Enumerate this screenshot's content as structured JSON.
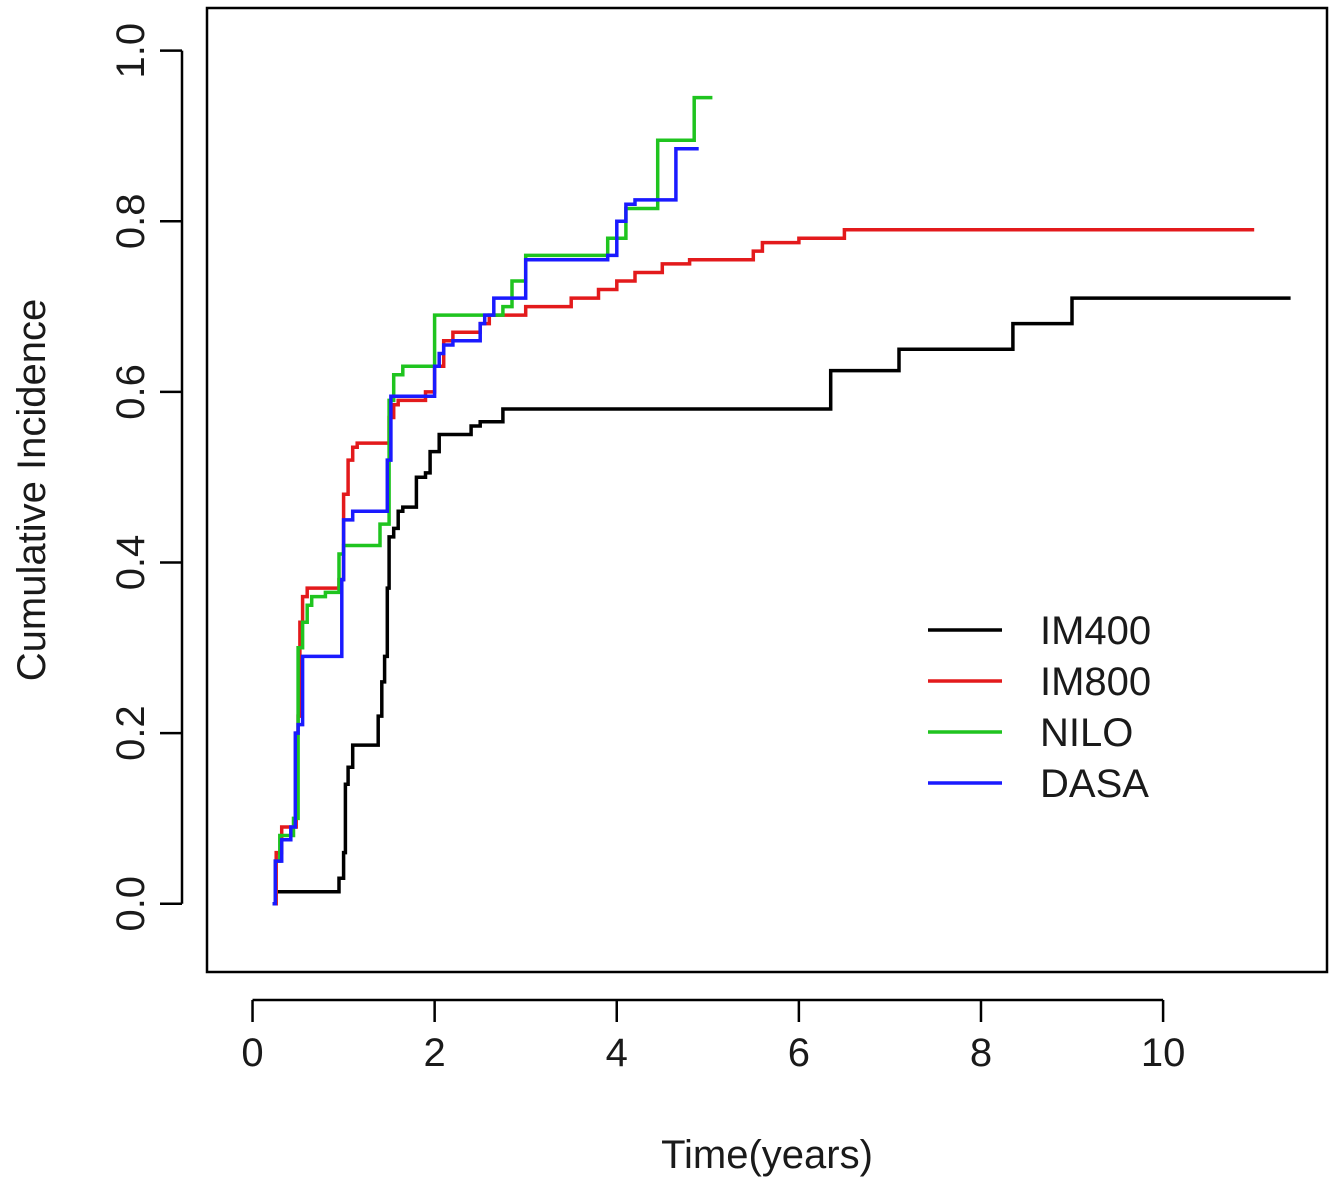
{
  "chart_data": {
    "type": "line",
    "step": true,
    "title": "",
    "xlabel": "Time(years)",
    "ylabel": "Cumulative Incidence",
    "xlim": [
      -0.5,
      11.8
    ],
    "ylim": [
      -0.08,
      1.05
    ],
    "xticks": [
      0,
      2,
      4,
      6,
      8,
      10
    ],
    "xtick_labels": [
      "0",
      "2",
      "4",
      "6",
      "8",
      "10"
    ],
    "yticks": [
      0.0,
      0.2,
      0.4,
      0.6,
      0.8,
      1.0
    ],
    "ytick_labels": [
      "0.0",
      "0.2",
      "0.4",
      "0.6",
      "0.8",
      "1.0"
    ],
    "grid": false,
    "legend": {
      "placement": "right-middle"
    },
    "series": [
      {
        "name": "IM400",
        "color": "#000000",
        "x": [
          0.22,
          0.25,
          0.9,
          0.95,
          1.0,
          1.02,
          1.05,
          1.1,
          1.35,
          1.38,
          1.42,
          1.45,
          1.48,
          1.5,
          1.55,
          1.6,
          1.65,
          1.8,
          1.9,
          1.95,
          2.05,
          2.1,
          2.4,
          2.5,
          2.75,
          6.3,
          6.35,
          7.1,
          8.35,
          9.0,
          11.4
        ],
        "y": [
          0.0,
          0.014,
          0.014,
          0.03,
          0.06,
          0.14,
          0.16,
          0.186,
          0.186,
          0.22,
          0.26,
          0.29,
          0.37,
          0.43,
          0.44,
          0.46,
          0.465,
          0.5,
          0.505,
          0.53,
          0.55,
          0.55,
          0.56,
          0.565,
          0.58,
          0.58,
          0.625,
          0.65,
          0.68,
          0.71,
          0.71
        ]
      },
      {
        "name": "IM800",
        "color": "#e31a1c",
        "x": [
          0.22,
          0.26,
          0.32,
          0.42,
          0.48,
          0.5,
          0.52,
          0.55,
          0.6,
          0.65,
          0.95,
          1.0,
          1.05,
          1.1,
          1.15,
          1.45,
          1.5,
          1.55,
          1.6,
          1.7,
          1.9,
          2.0,
          2.1,
          2.2,
          2.5,
          2.6,
          3.0,
          3.5,
          3.8,
          4.0,
          4.2,
          4.5,
          4.8,
          5.3,
          5.5,
          5.6,
          6.0,
          6.5,
          11.0
        ],
        "y": [
          0.0,
          0.06,
          0.09,
          0.09,
          0.2,
          0.22,
          0.33,
          0.36,
          0.37,
          0.37,
          0.38,
          0.48,
          0.52,
          0.535,
          0.54,
          0.54,
          0.57,
          0.585,
          0.59,
          0.59,
          0.6,
          0.63,
          0.66,
          0.67,
          0.68,
          0.69,
          0.7,
          0.71,
          0.72,
          0.73,
          0.74,
          0.75,
          0.755,
          0.755,
          0.765,
          0.775,
          0.78,
          0.79,
          0.79
        ]
      },
      {
        "name": "NILO",
        "color": "#1fc41f",
        "x": [
          0.22,
          0.25,
          0.3,
          0.45,
          0.5,
          0.55,
          0.6,
          0.65,
          0.8,
          0.95,
          1.0,
          1.35,
          1.4,
          1.5,
          1.55,
          1.65,
          1.95,
          2.0,
          2.7,
          2.75,
          2.85,
          3.0,
          3.85,
          3.9,
          4.1,
          4.4,
          4.45,
          4.8,
          4.85,
          5.05
        ],
        "y": [
          0.0,
          0.05,
          0.08,
          0.1,
          0.3,
          0.33,
          0.35,
          0.36,
          0.365,
          0.41,
          0.42,
          0.42,
          0.445,
          0.59,
          0.62,
          0.63,
          0.63,
          0.69,
          0.69,
          0.7,
          0.73,
          0.76,
          0.76,
          0.78,
          0.815,
          0.815,
          0.895,
          0.895,
          0.945,
          0.945
        ]
      },
      {
        "name": "DASA",
        "color": "#1a1aff",
        "x": [
          0.22,
          0.25,
          0.32,
          0.42,
          0.47,
          0.5,
          0.55,
          0.95,
          0.98,
          1.0,
          1.1,
          1.45,
          1.48,
          1.52,
          1.95,
          2.0,
          2.05,
          2.1,
          2.2,
          2.4,
          2.5,
          2.55,
          2.65,
          2.95,
          3.0,
          3.9,
          4.0,
          4.1,
          4.2,
          4.6,
          4.65,
          4.9
        ],
        "y": [
          0.0,
          0.05,
          0.075,
          0.09,
          0.2,
          0.21,
          0.29,
          0.29,
          0.38,
          0.45,
          0.46,
          0.46,
          0.52,
          0.595,
          0.595,
          0.63,
          0.645,
          0.655,
          0.66,
          0.66,
          0.68,
          0.69,
          0.71,
          0.71,
          0.755,
          0.76,
          0.8,
          0.82,
          0.825,
          0.825,
          0.885,
          0.885
        ]
      }
    ]
  }
}
